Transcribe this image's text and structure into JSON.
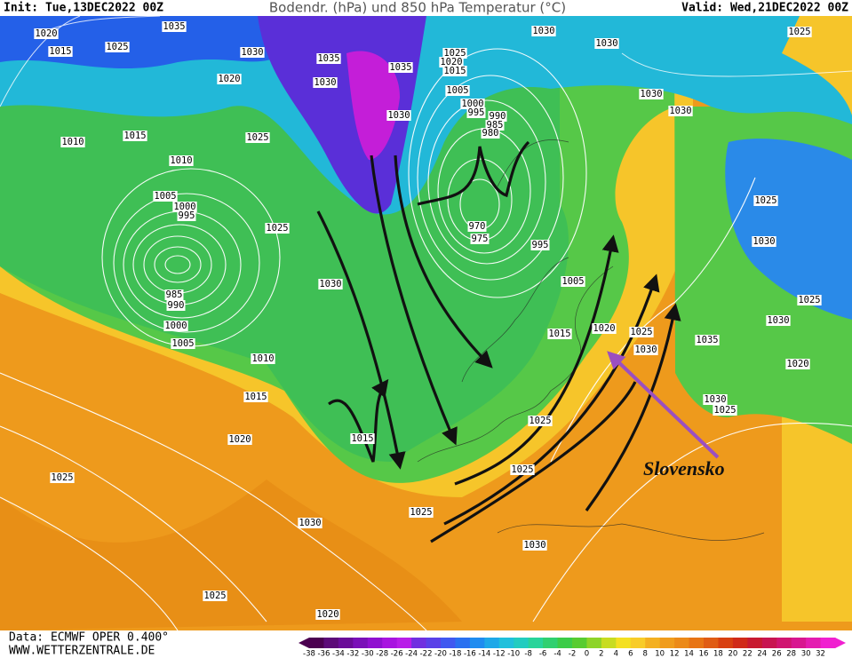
{
  "header": {
    "init": "Init: Tue,13DEC2022 00Z",
    "title": "Bodendr. (hPa) und 850 hPa Temperatur (°C)",
    "valid": "Valid: Wed,21DEC2022 00Z"
  },
  "footer": {
    "source": "Data: ECMWF OPER 0.400°",
    "site": "WWW.WETTERZENTRALE.DE"
  },
  "annotation": "Slovensko",
  "pressure_labels": [
    1020,
    1015,
    1025,
    1035,
    1030,
    1020,
    1010,
    1015,
    1025,
    1010,
    1005,
    1000,
    995,
    1025,
    985,
    990,
    1000,
    1005,
    1030,
    1010,
    1015,
    1020,
    1025,
    1030,
    1025,
    1025,
    1020,
    1030,
    1025,
    1025,
    1015,
    1020,
    1025,
    1030,
    1030,
    1025,
    1035,
    1005,
    995,
    970,
    975,
    1030,
    1030,
    1030,
    1030,
    1025,
    1025,
    1030,
    1030,
    1025,
    1020,
    1025,
    1020,
    1015,
    1005,
    1000,
    995,
    990,
    985,
    980,
    1035,
    1030,
    1030,
    1035,
    1015
  ],
  "temperature_scale": [
    -38,
    -36,
    -34,
    -32,
    -30,
    -28,
    -26,
    -24,
    -22,
    -20,
    -18,
    -16,
    -14,
    -12,
    -10,
    -8,
    -6,
    -4,
    -2,
    0,
    2,
    4,
    6,
    8,
    10,
    12,
    14,
    16,
    18,
    20,
    22,
    24,
    26,
    28,
    30,
    32
  ]
}
